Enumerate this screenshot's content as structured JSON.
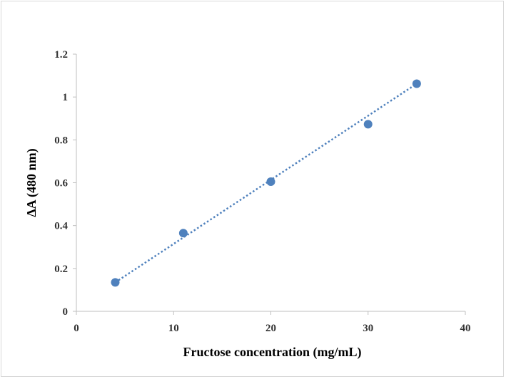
{
  "chart_data": {
    "type": "scatter",
    "title": "",
    "xlabel": "Fructose concentration (mg/mL)",
    "ylabel": "ΔA (480 nm)",
    "xlim": [
      0,
      40
    ],
    "ylim": [
      0,
      1.2
    ],
    "x_ticks": [
      "0",
      "10",
      "20",
      "30",
      "40"
    ],
    "y_ticks": [
      "0",
      "0.2",
      "0.4",
      "0.6",
      "0.8",
      "1",
      "1.2"
    ],
    "grid": false,
    "legend": "none",
    "series": [
      {
        "x": [
          4,
          11,
          20,
          30,
          35
        ],
        "y": [
          0.135,
          0.365,
          0.605,
          0.873,
          1.062
        ],
        "color": "#4f81bd"
      }
    ],
    "trendline": {
      "style": "dotted",
      "color": "#4f81bd",
      "x_range": [
        4,
        35
      ],
      "y_range": [
        0.135,
        1.062
      ]
    }
  }
}
